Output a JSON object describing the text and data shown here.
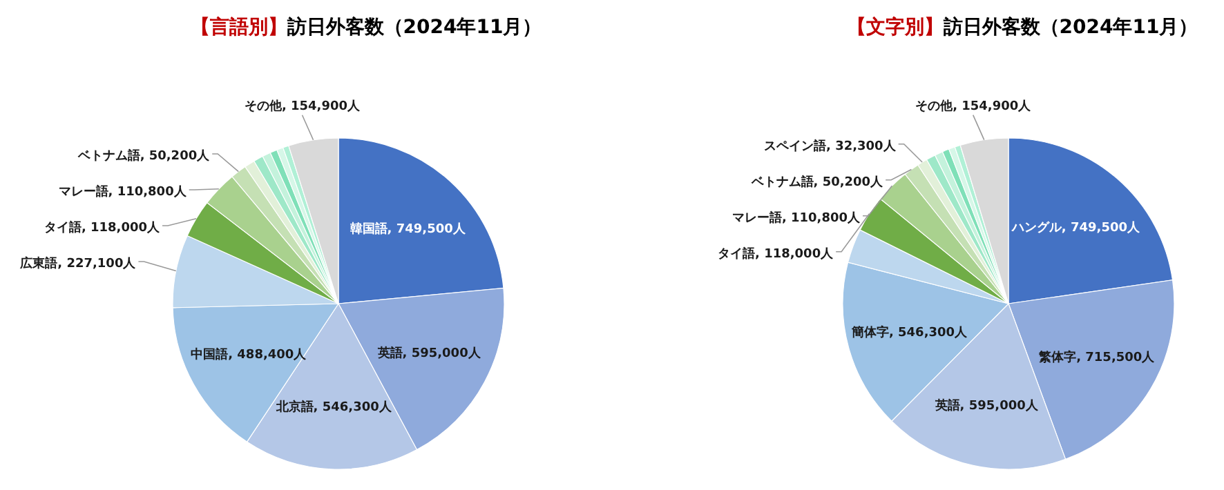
{
  "chart_data": [
    {
      "type": "pie",
      "title": "【言語別】訪日外客数（2024年11月）",
      "categories": [
        "韓国語",
        "英語",
        "北京語",
        "中国語",
        "広東語",
        "タイ語",
        "マレー語",
        "ベトナム語",
        null,
        null,
        null,
        null,
        null,
        null,
        "その他"
      ],
      "values": [
        749500,
        595000,
        546300,
        488400,
        227100,
        118000,
        110800,
        50200,
        32300,
        30000,
        26000,
        22000,
        20000,
        18200,
        154900
      ],
      "value_labels": [
        "749,500人",
        "595,000人",
        "546,300人",
        "488,400人",
        "227,100人",
        "118,000人",
        "110,800人",
        "50,200人",
        null,
        null,
        null,
        null,
        null,
        null,
        "154,900人"
      ],
      "colors": [
        "#4472c4",
        "#8faadc",
        "#b4c7e7",
        "#9dc3e6",
        "#bdd7ee",
        "#70ad47",
        "#a9d18e",
        "#c5e0b4",
        "#e2f0d9",
        "#9ee8c8",
        "#c4f2dc",
        "#7fe0b8",
        "#d6f7e8",
        "#b0f0d6",
        "#d9d9d9"
      ]
    },
    {
      "type": "pie",
      "title": "【文字別】訪日外客数（2024年11月）",
      "categories": [
        "ハングル",
        "繁体字",
        "英語",
        "簡体字",
        null,
        "タイ語",
        "マレー語",
        "ベトナム語",
        "スペイン語",
        null,
        null,
        null,
        null,
        null,
        "その他"
      ],
      "values": [
        749500,
        715500,
        595000,
        546300,
        110000,
        118000,
        110800,
        50200,
        32300,
        30000,
        26000,
        22000,
        20000,
        18200,
        154900
      ],
      "value_labels": [
        "749,500人",
        "715,500人",
        "595,000人",
        "546,300人",
        null,
        "118,000人",
        "110,800人",
        "50,200人",
        "32,300人",
        null,
        null,
        null,
        null,
        null,
        "154,900人"
      ],
      "colors": [
        "#4472c4",
        "#8faadc",
        "#b4c7e7",
        "#9dc3e6",
        "#bdd7ee",
        "#70ad47",
        "#a9d18e",
        "#c5e0b4",
        "#e2f0d9",
        "#9ee8c8",
        "#c4f2dc",
        "#7fe0b8",
        "#d6f7e8",
        "#b0f0d6",
        "#d9d9d9"
      ]
    }
  ]
}
